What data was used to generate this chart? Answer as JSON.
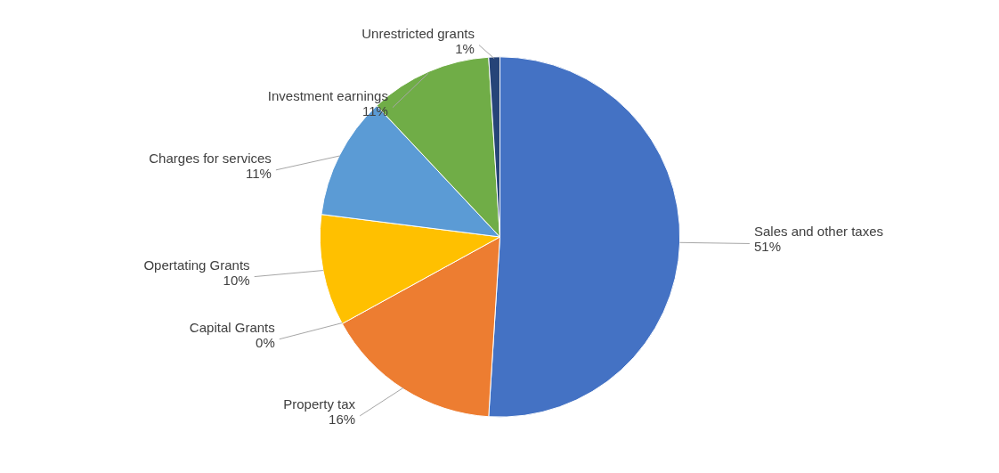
{
  "chart_data": {
    "type": "pie",
    "categories": [
      "Sales and other taxes",
      "Property tax",
      "Capital Grants",
      "Opertating Grants",
      "Charges for services",
      "Investment earnings",
      "Unrestricted grants"
    ],
    "values": [
      51,
      16,
      0,
      10,
      11,
      11,
      1
    ],
    "value_labels": [
      "51%",
      "16%",
      "0%",
      "10%",
      "11%",
      "11%",
      "1%"
    ],
    "colors": [
      "#4472c4",
      "#ed7d31",
      "#a5a5a5",
      "#ffc000",
      "#5b9bd5",
      "#70ad47",
      "#264478"
    ]
  }
}
